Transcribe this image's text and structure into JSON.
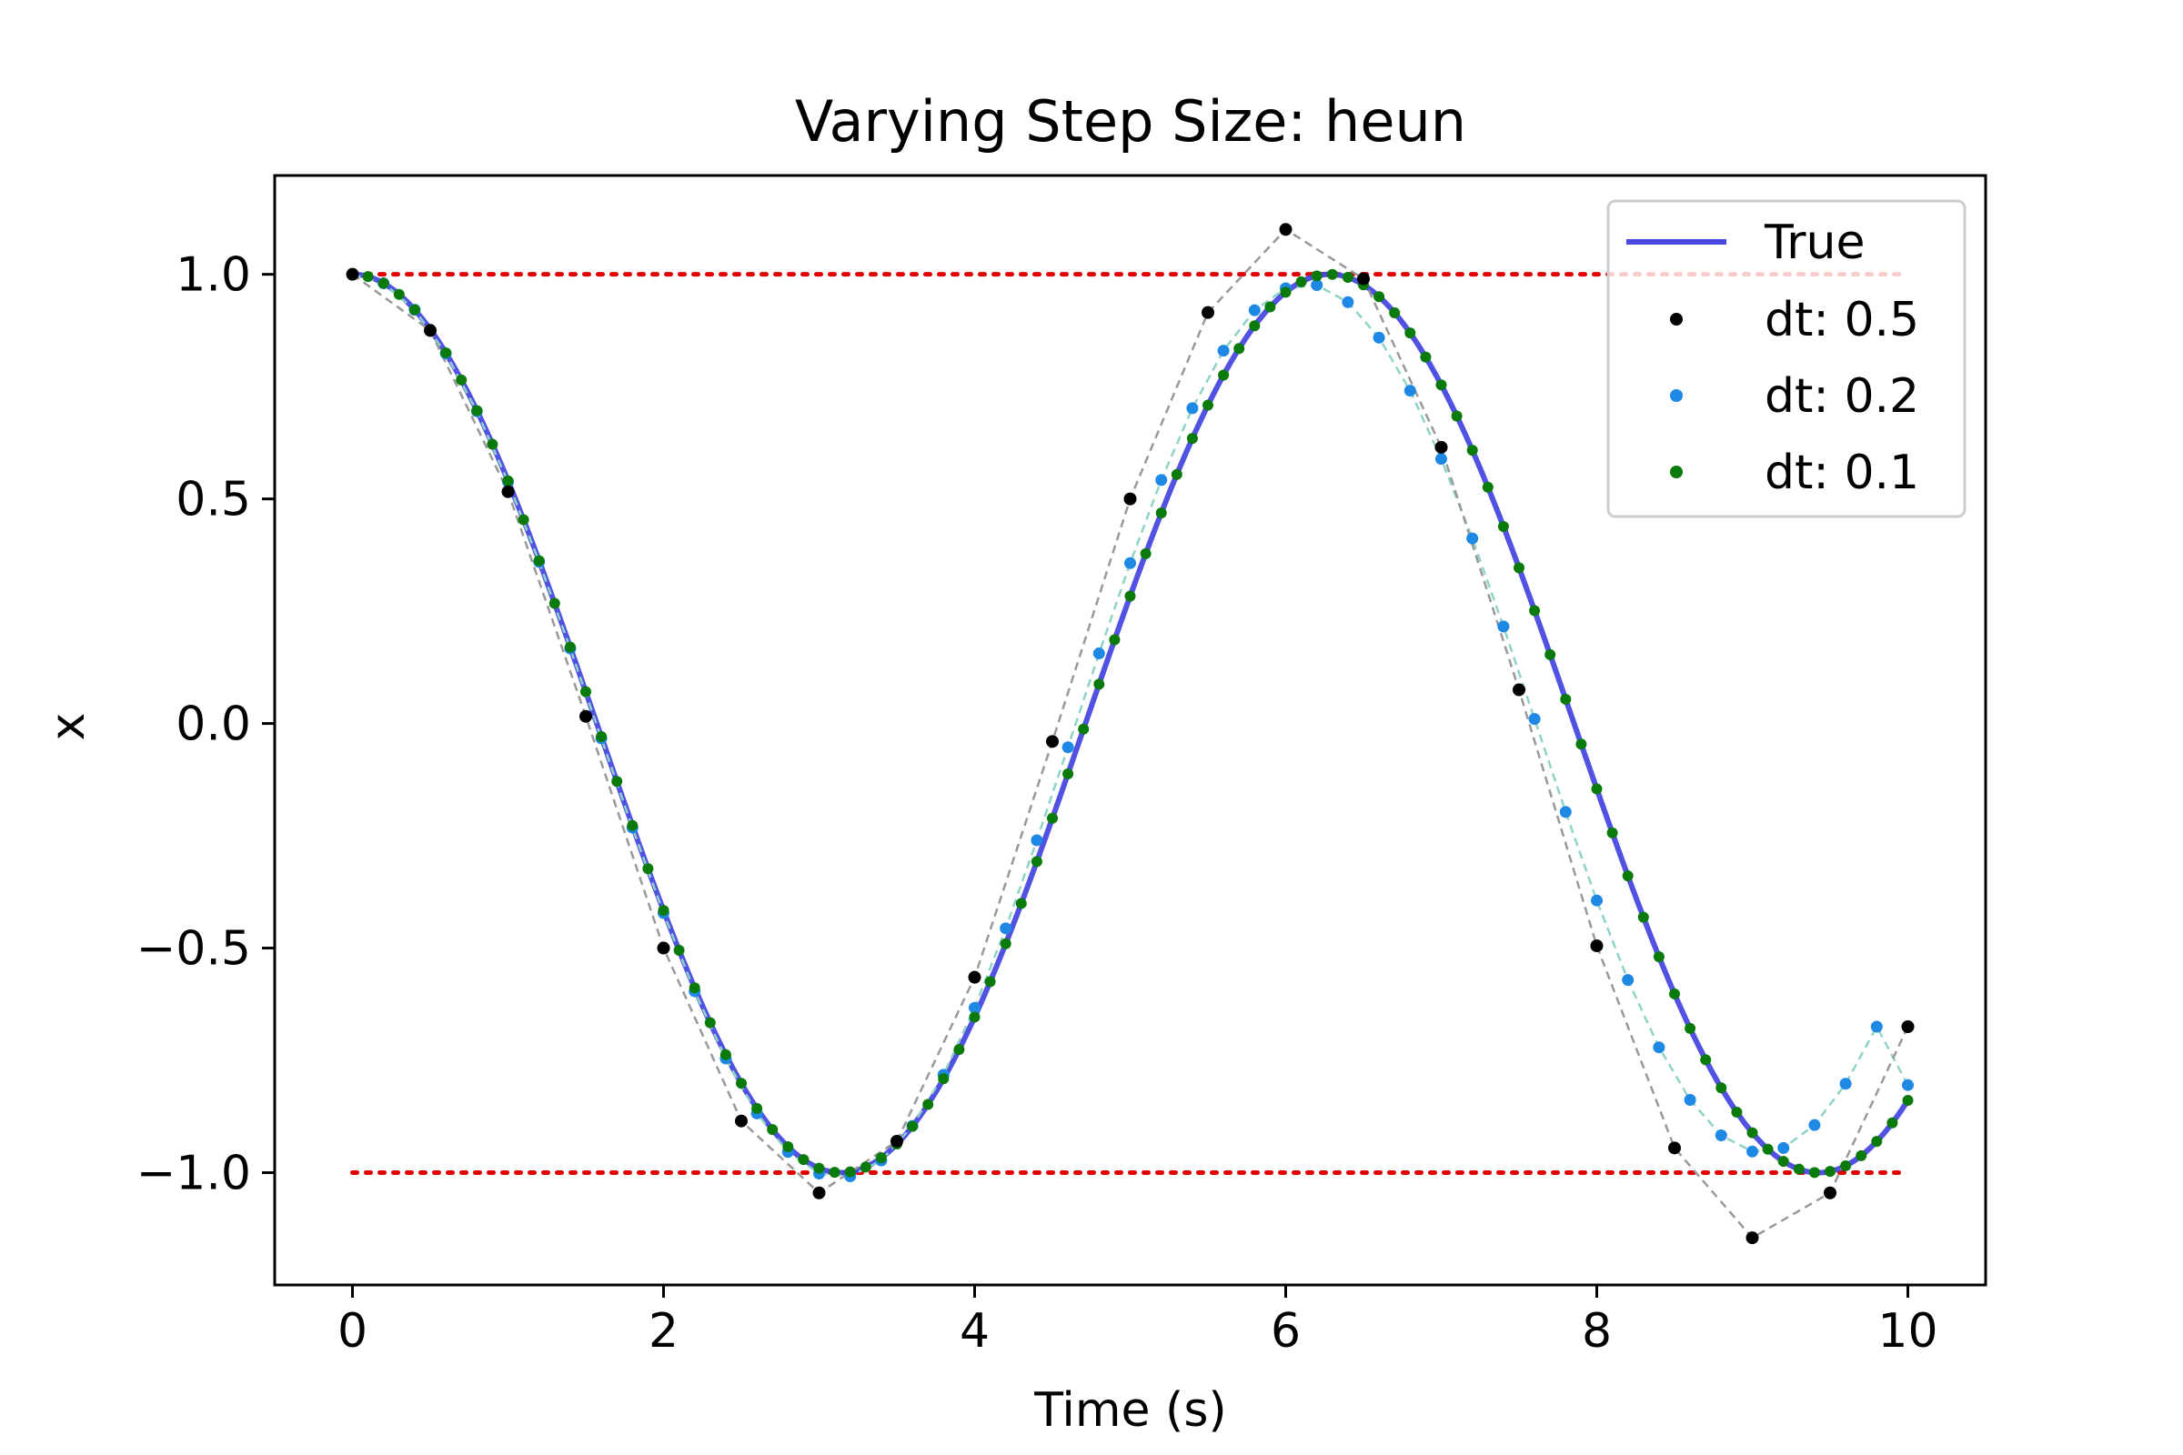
{
  "chart_data": {
    "type": "line",
    "title": "Varying Step Size: heun",
    "xlabel": "Time (s)",
    "ylabel": "x",
    "xlim": [
      -0.5,
      10.5
    ],
    "ylim": [
      -1.25,
      1.22
    ],
    "x_ticks": [
      0,
      2,
      4,
      6,
      8,
      10
    ],
    "x_tick_labels": [
      "0",
      "2",
      "4",
      "6",
      "8",
      "10"
    ],
    "y_ticks": [
      1.0,
      0.5,
      0.0,
      -0.5,
      -1.0
    ],
    "y_tick_labels": [
      "1.0",
      "0.5",
      "0.0",
      "−0.5",
      "−1.0"
    ],
    "grid": false,
    "legend_position": "top-right",
    "bounds": {
      "upper": 1.0,
      "lower": -1.0,
      "x_range": [
        0,
        10
      ],
      "color": "#e00000",
      "style": "dotted"
    },
    "series": [
      {
        "name": "True",
        "kind": "line",
        "color": "#4848e0",
        "function": "cos",
        "x_range": [
          0,
          10
        ]
      },
      {
        "name": "dt: 0.5",
        "kind": "scatter",
        "color": "#000000",
        "connector_color": "#999999",
        "connector_style": "dashed",
        "x": [
          0,
          0.5,
          1.0,
          1.5,
          2.0,
          2.5,
          3.0,
          3.5,
          4.0,
          4.5,
          5.0,
          5.5,
          6.0,
          6.5,
          7.0,
          7.5,
          8.0,
          8.5,
          9.0,
          9.5,
          10.0
        ],
        "y": [
          1.0,
          0.875,
          0.516,
          0.016,
          -0.5,
          -0.885,
          -1.045,
          -0.93,
          -0.565,
          -0.04,
          0.5,
          0.915,
          1.1,
          0.99,
          0.615,
          0.075,
          -0.495,
          -0.945,
          -1.145,
          -1.045,
          -0.675
        ]
      },
      {
        "name": "dt: 0.2",
        "kind": "scatter",
        "color": "#1e88e5",
        "connector_color": "#8fd3c8",
        "connector_style": "dashed",
        "x": [
          0,
          0.2,
          0.4,
          0.6,
          0.8,
          1.0,
          1.2,
          1.4,
          1.6,
          1.8,
          2.0,
          2.2,
          2.4,
          2.6,
          2.8,
          3.0,
          3.2,
          3.4,
          3.6,
          3.8,
          4.0,
          4.2,
          4.4,
          4.6,
          4.8,
          5.0,
          5.2,
          5.4,
          5.6,
          5.8,
          6.0,
          6.2,
          6.4,
          6.6,
          6.8,
          7.0,
          7.2,
          7.4,
          7.6,
          7.8,
          8.0,
          8.2,
          8.4,
          8.6,
          8.8,
          9.0,
          9.2,
          9.4,
          9.6,
          9.8,
          10.0
        ],
        "y": [
          1.0,
          0.98,
          0.921,
          0.824,
          0.695,
          0.538,
          0.36,
          0.167,
          -0.033,
          -0.232,
          -0.422,
          -0.596,
          -0.746,
          -0.868,
          -0.954,
          -1.002,
          -1.008,
          -0.973,
          -0.896,
          -0.782,
          -0.633,
          -0.456,
          -0.26,
          -0.053,
          0.156,
          0.357,
          0.542,
          0.702,
          0.83,
          0.92,
          0.969,
          0.976,
          0.938,
          0.859,
          0.741,
          0.589,
          0.412,
          0.216,
          0.01,
          -0.197,
          -0.394,
          -0.571,
          -0.721,
          -0.838,
          -0.917,
          -0.953,
          -0.945,
          -0.894,
          -0.802,
          -0.675,
          -0.805
        ]
      },
      {
        "name": "dt: 0.1",
        "kind": "scatter",
        "color": "#0a7a0a",
        "function": "cos",
        "x_range": [
          0,
          10
        ],
        "x_step": 0.1
      }
    ]
  }
}
